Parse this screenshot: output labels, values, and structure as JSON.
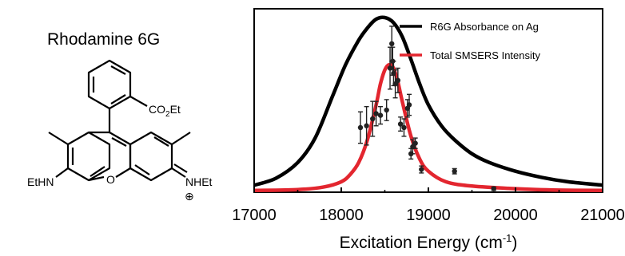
{
  "molecule": {
    "title": "Rhodamine 6G",
    "ester_label": "CO",
    "ester_sub": "2",
    "ester_tail": "Et",
    "left_amine": "EtHN",
    "right_amine": "NHEt",
    "oxygen": "O",
    "charge": "⊕"
  },
  "chart_data": {
    "type": "line",
    "xlabel": "Excitation Energy (cm",
    "xlabel_sup": "-1",
    "xlabel_end": ")",
    "ylabel": "",
    "xlim": [
      17000,
      21000
    ],
    "ylim": [
      0,
      1.05
    ],
    "x_ticks": [
      17000,
      18000,
      19000,
      20000,
      21000
    ],
    "x_tick_labels": [
      "17000",
      "18000",
      "19000",
      "20000",
      "21000"
    ],
    "grid": false,
    "legend_position": "top-right",
    "series": [
      {
        "name": "R6G Absorbance on Ag",
        "color": "#000000",
        "x": [
          17000,
          17250,
          17500,
          17700,
          17900,
          18050,
          18200,
          18300,
          18400,
          18500,
          18600,
          18700,
          18800,
          18900,
          19000,
          19150,
          19300,
          19500,
          19700,
          20000,
          20300,
          20600,
          21000
        ],
        "y": [
          0.04,
          0.08,
          0.17,
          0.31,
          0.55,
          0.73,
          0.87,
          0.94,
          0.99,
          1.0,
          0.97,
          0.89,
          0.76,
          0.62,
          0.5,
          0.38,
          0.3,
          0.22,
          0.17,
          0.12,
          0.085,
          0.06,
          0.04
        ]
      },
      {
        "name": "Total SMSERS Intensity",
        "color": "#e3262f",
        "x": [
          17000,
          17500,
          17800,
          18000,
          18100,
          18200,
          18300,
          18400,
          18450,
          18500,
          18550,
          18600,
          18650,
          18700,
          18800,
          18900,
          19000,
          19200,
          19500,
          20000,
          20500,
          21000
        ],
        "y": [
          0.01,
          0.015,
          0.03,
          0.06,
          0.1,
          0.17,
          0.3,
          0.5,
          0.62,
          0.7,
          0.73,
          0.71,
          0.63,
          0.52,
          0.32,
          0.19,
          0.12,
          0.06,
          0.035,
          0.02,
          0.012,
          0.01
        ]
      }
    ],
    "points": {
      "name": "SMSERS measurements",
      "color": "#222222",
      "x": [
        18220,
        18290,
        18360,
        18400,
        18450,
        18520,
        18560,
        18580,
        18590,
        18600,
        18620,
        18650,
        18680,
        18720,
        18760,
        18780,
        18800,
        18820,
        18850,
        18920,
        19300,
        19750
      ],
      "y": [
        0.37,
        0.38,
        0.42,
        0.45,
        0.44,
        0.47,
        0.71,
        0.85,
        0.75,
        0.68,
        0.62,
        0.64,
        0.39,
        0.37,
        0.48,
        0.5,
        0.22,
        0.26,
        0.28,
        0.13,
        0.12,
        0.02
      ],
      "err": [
        0.09,
        0.11,
        0.1,
        0.07,
        0.05,
        0.06,
        0.12,
        0.1,
        0.08,
        0.07,
        0.08,
        0.07,
        0.04,
        0.05,
        0.05,
        0.06,
        0.03,
        0.04,
        0.03,
        0.02,
        0.015,
        0.01
      ]
    }
  }
}
